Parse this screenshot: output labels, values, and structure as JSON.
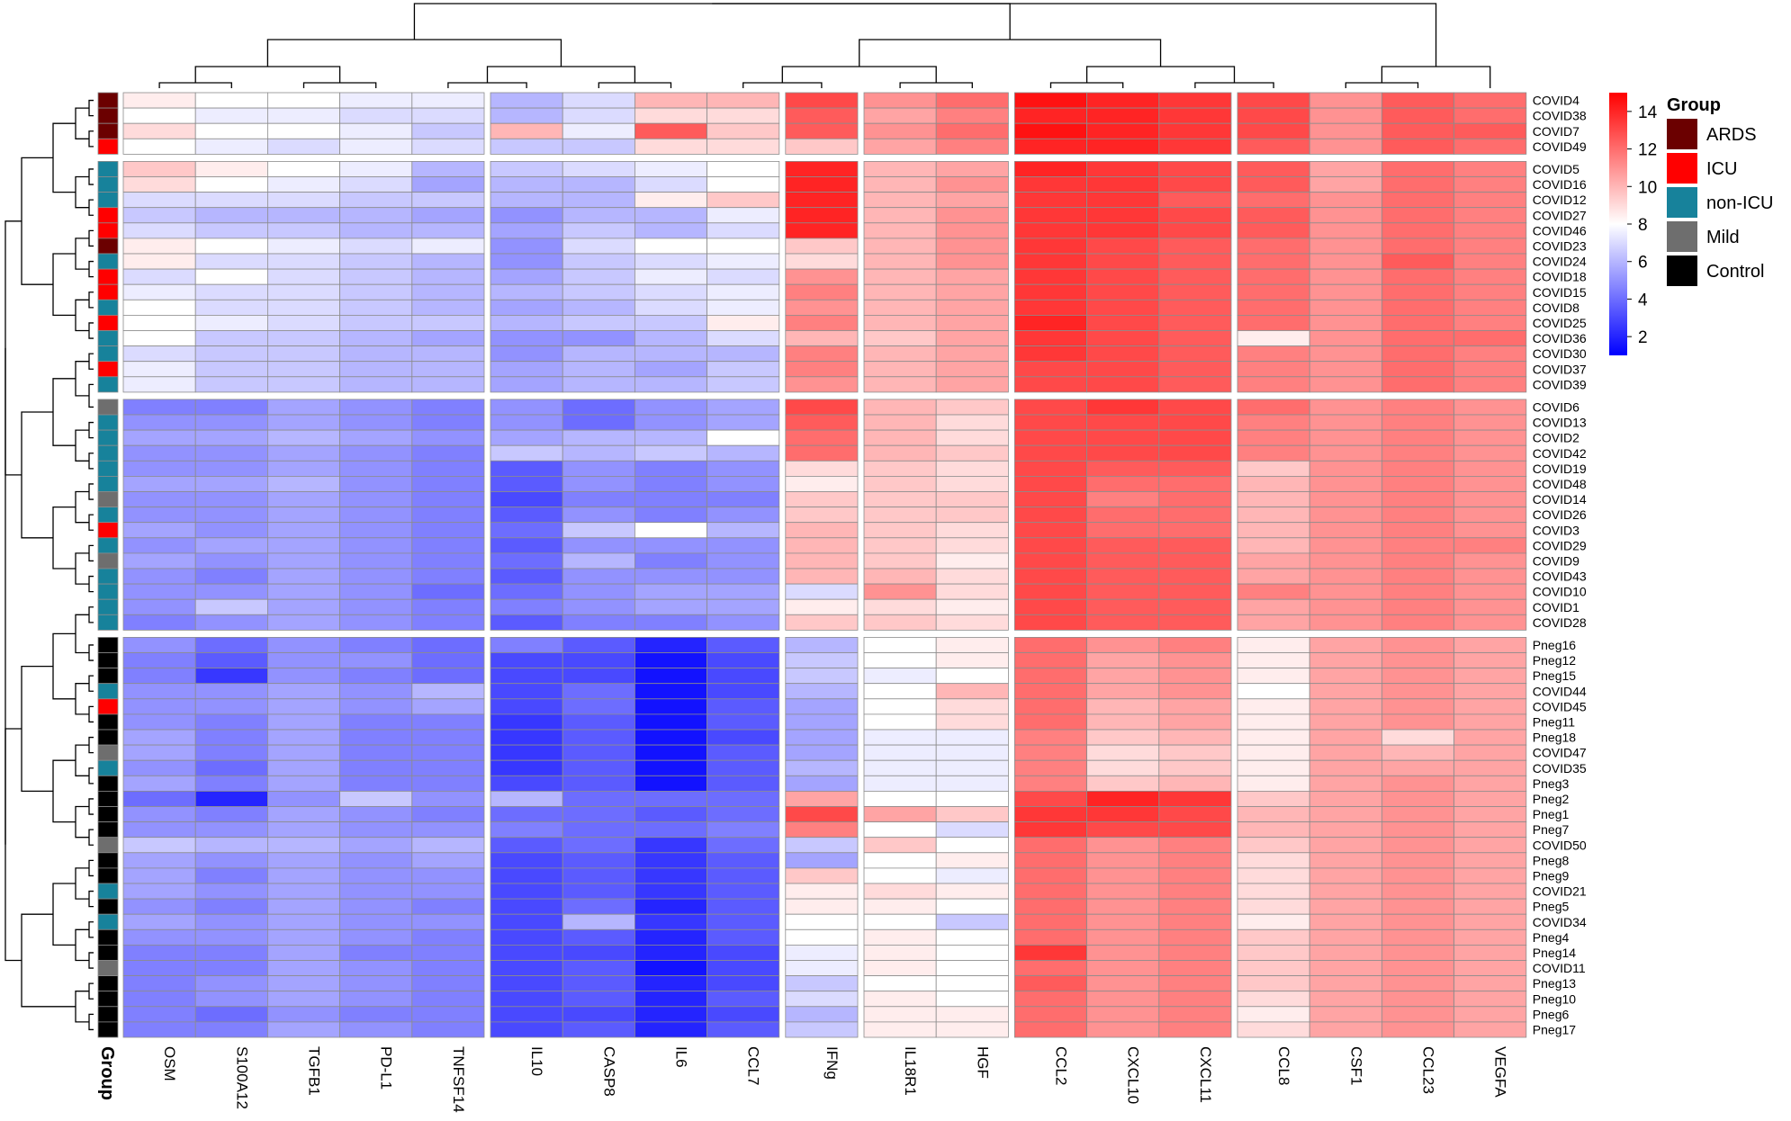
{
  "chart_data": {
    "type": "heatmap",
    "columns": [
      "OSM",
      "S100A12",
      "TGFB1",
      "PD-L1",
      "TNFSF14",
      "IL10",
      "CASP8",
      "IL6",
      "CCL7",
      "IFNg",
      "IL18R1",
      "HGF",
      "CCL2",
      "CXCL10",
      "CXCL11",
      "CCL8",
      "CSF1",
      "CCL23",
      "VEGFA"
    ],
    "rows": [
      "COVID4",
      "COVID38",
      "COVID7",
      "COVID49",
      "COVID5",
      "COVID16",
      "COVID12",
      "COVID27",
      "COVID46",
      "COVID23",
      "COVID24",
      "COVID18",
      "COVID15",
      "COVID8",
      "COVID25",
      "COVID36",
      "COVID30",
      "COVID37",
      "COVID39",
      "COVID6",
      "COVID13",
      "COVID2",
      "COVID42",
      "COVID19",
      "COVID48",
      "COVID14",
      "COVID26",
      "COVID3",
      "COVID29",
      "COVID9",
      "COVID43",
      "COVID10",
      "COVID1",
      "COVID28",
      "Pneg16",
      "Pneg12",
      "Pneg15",
      "COVID44",
      "COVID45",
      "Pneg11",
      "Pneg18",
      "COVID47",
      "COVID35",
      "Pneg3",
      "Pneg2",
      "Pneg1",
      "Pneg7",
      "COVID50",
      "Pneg8",
      "Pneg9",
      "COVID21",
      "Pneg5",
      "COVID34",
      "Pneg4",
      "Pneg14",
      "COVID11",
      "Pneg13",
      "Pneg10",
      "Pneg6",
      "Pneg17"
    ],
    "row_groups": [
      "ARDS",
      "ARDS",
      "ARDS",
      "ICU",
      "non-ICU",
      "non-ICU",
      "non-ICU",
      "ICU",
      "ICU",
      "ARDS",
      "non-ICU",
      "ICU",
      "ICU",
      "non-ICU",
      "ICU",
      "non-ICU",
      "non-ICU",
      "ICU",
      "non-ICU",
      "Mild",
      "non-ICU",
      "non-ICU",
      "non-ICU",
      "non-ICU",
      "non-ICU",
      "Mild",
      "non-ICU",
      "ICU",
      "non-ICU",
      "Mild",
      "non-ICU",
      "non-ICU",
      "non-ICU",
      "non-ICU",
      "Control",
      "Control",
      "Control",
      "non-ICU",
      "ICU",
      "Control",
      "Control",
      "Mild",
      "non-ICU",
      "Control",
      "Control",
      "Control",
      "Control",
      "Mild",
      "Control",
      "Control",
      "non-ICU",
      "Control",
      "non-ICU",
      "Control",
      "Control",
      "Mild",
      "Control",
      "Control",
      "Control",
      "Control"
    ],
    "row_splits": [
      4,
      19,
      34
    ],
    "col_splits": [
      5,
      9,
      10,
      12,
      15
    ],
    "values": [
      [
        8.5,
        8,
        8,
        7.5,
        7.5,
        6,
        7,
        10,
        10,
        13,
        11,
        12,
        14.5,
        14,
        13.5,
        13,
        11,
        12.5,
        12
      ],
      [
        8,
        7.5,
        7.5,
        7,
        7,
        6,
        7,
        9,
        9,
        12.5,
        10.5,
        11.5,
        14,
        14,
        13.5,
        13,
        11,
        12.5,
        12
      ],
      [
        9,
        8,
        8,
        7.5,
        6.5,
        10,
        7.5,
        12.5,
        9.5,
        12.5,
        11,
        12,
        14.5,
        14,
        13.5,
        13,
        11,
        12.5,
        12.5
      ],
      [
        8,
        7.5,
        7,
        7.5,
        7,
        6.5,
        6.5,
        9,
        9,
        9.5,
        10.5,
        11.5,
        14,
        14,
        13.5,
        12.5,
        11,
        12.5,
        12
      ],
      [
        9.5,
        8.5,
        8,
        7.5,
        6,
        6.5,
        7,
        7.5,
        8,
        14,
        10,
        10.5,
        14,
        13.5,
        13,
        12.5,
        10.5,
        12,
        11.5
      ],
      [
        9,
        8,
        7.5,
        7,
        5.5,
        6,
        6,
        7,
        8,
        14,
        10,
        11,
        13.5,
        13.5,
        13,
        12.5,
        10.5,
        12,
        11.5
      ],
      [
        7,
        7,
        7,
        6.5,
        6.5,
        6,
        6,
        8.5,
        9.5,
        14,
        10,
        10.5,
        13.5,
        13.5,
        12.5,
        12,
        11,
        12,
        11.5
      ],
      [
        6.5,
        6,
        6,
        6,
        5.5,
        5,
        6,
        6,
        7.5,
        14,
        10,
        11,
        13.5,
        13.5,
        13,
        12.5,
        11,
        12,
        11.5
      ],
      [
        7,
        6.5,
        6.5,
        6,
        6,
        5.5,
        6.5,
        6,
        7,
        14,
        10,
        11,
        13.5,
        13.5,
        13,
        12.5,
        11,
        12,
        11.5
      ],
      [
        8.5,
        8,
        7.5,
        7,
        7.5,
        5,
        7,
        8,
        8,
        9.5,
        10,
        11,
        13.5,
        13,
        12.5,
        12,
        11,
        12,
        11.5
      ],
      [
        8.5,
        7,
        7,
        6.5,
        6,
        5,
        6.5,
        7,
        7.5,
        9,
        10,
        11,
        13.5,
        13,
        12.5,
        12,
        11,
        12.5,
        11.5
      ],
      [
        7,
        8,
        7,
        6.5,
        6,
        5.5,
        6.5,
        7.5,
        7,
        11,
        10,
        10.5,
        13.5,
        13,
        12.5,
        12,
        11,
        12,
        11.5
      ],
      [
        7.5,
        7,
        7,
        6.5,
        6,
        6,
        6.5,
        7,
        7.5,
        11.5,
        10,
        10.5,
        13.5,
        13,
        12.5,
        12,
        11,
        12,
        11.5
      ],
      [
        8,
        7,
        7,
        6.5,
        6,
        5.5,
        6,
        7,
        7.5,
        11,
        10,
        10.5,
        13.5,
        13,
        12.5,
        12,
        11,
        12,
        11.5
      ],
      [
        8,
        7.5,
        7,
        6.5,
        6.5,
        6,
        6.5,
        6.5,
        8.5,
        11.5,
        10,
        10.5,
        14,
        13,
        12.5,
        12,
        11,
        12,
        11.5
      ],
      [
        8,
        6.5,
        6.5,
        6,
        5.5,
        5,
        5,
        6,
        7,
        10,
        9.5,
        10.5,
        13.5,
        13,
        12.5,
        8.5,
        11,
        12,
        12
      ],
      [
        7,
        6.5,
        6.5,
        6,
        6,
        5,
        6,
        6,
        6,
        11.5,
        10,
        10.5,
        13.5,
        13,
        12.5,
        11.5,
        11,
        12,
        11.5
      ],
      [
        7.5,
        6.5,
        6.5,
        6,
        6,
        5.5,
        6,
        5.5,
        6.5,
        11.5,
        10,
        10.5,
        13,
        13,
        12.5,
        11.5,
        11,
        12,
        11.5
      ],
      [
        7.5,
        6.5,
        6.5,
        6,
        6,
        5.5,
        6,
        6,
        6.5,
        11,
        10,
        10.5,
        13,
        13,
        12.5,
        11.5,
        11,
        12,
        11.5
      ],
      [
        4.5,
        4.5,
        5.5,
        5,
        4.5,
        5,
        4,
        5,
        5.5,
        13,
        10,
        9.5,
        13,
        13.5,
        13,
        12,
        11,
        11.5,
        11
      ],
      [
        5,
        5,
        5.5,
        5,
        4.5,
        5,
        4,
        5,
        5.5,
        12.5,
        10,
        9,
        13,
        13,
        13,
        11.5,
        11,
        11.5,
        11
      ],
      [
        5.5,
        5.5,
        6,
        5.5,
        5,
        5.5,
        6,
        6,
        8,
        12,
        10,
        9,
        13,
        13,
        13,
        11.5,
        11,
        11.5,
        11
      ],
      [
        5,
        5,
        5.5,
        5,
        4.5,
        6.5,
        6,
        6.5,
        6,
        12,
        10,
        9.5,
        13,
        13,
        13,
        11.5,
        11,
        11.5,
        11
      ],
      [
        5,
        5,
        5.5,
        5,
        4.5,
        3.5,
        5,
        4.5,
        5,
        9,
        9.5,
        9,
        13,
        12.5,
        12.5,
        9.5,
        11,
        11.5,
        11
      ],
      [
        5.5,
        5.5,
        6,
        5,
        4.5,
        3.5,
        5,
        4.5,
        5,
        8.5,
        9.5,
        9,
        13,
        12,
        12,
        10,
        11,
        11.5,
        11
      ],
      [
        5,
        5,
        5.5,
        5,
        4.5,
        3,
        4.5,
        4.5,
        4.5,
        9.5,
        9.5,
        9.5,
        13,
        11.5,
        12,
        10,
        11,
        11.5,
        11
      ],
      [
        5,
        5,
        5.5,
        5,
        4.5,
        3.5,
        5,
        4.5,
        5,
        9.5,
        9.5,
        9.5,
        13,
        12,
        12,
        10,
        11,
        11.5,
        11
      ],
      [
        5.5,
        5,
        5.5,
        5,
        4.5,
        4,
        6.5,
        8,
        6,
        10,
        9.5,
        9,
        13,
        12,
        12,
        10,
        11,
        11.5,
        11
      ],
      [
        5,
        5.5,
        5.5,
        5,
        4.5,
        3.5,
        5,
        5,
        5,
        10,
        9.5,
        9,
        13,
        12.5,
        12.5,
        10,
        11,
        11.5,
        11.5
      ],
      [
        5.5,
        5,
        5.5,
        5,
        4.5,
        4,
        6,
        4.5,
        5,
        10,
        9.5,
        8.5,
        13,
        12.5,
        12.5,
        10.5,
        11,
        11.5,
        11
      ],
      [
        5,
        4.5,
        5.5,
        5,
        4.5,
        3.5,
        5,
        5,
        5,
        10,
        10,
        9,
        13,
        12.5,
        12.5,
        10.5,
        11,
        11.5,
        11
      ],
      [
        5,
        5,
        5.5,
        5,
        4,
        4,
        5,
        5.5,
        5.5,
        7,
        11,
        9,
        13,
        12.5,
        12.5,
        11.5,
        11,
        11.5,
        11
      ],
      [
        5,
        6.5,
        5.5,
        5,
        4.5,
        4.5,
        5,
        5.5,
        5.5,
        8.5,
        9,
        8.5,
        13,
        12.5,
        12.5,
        10.5,
        11,
        11.5,
        11
      ],
      [
        4.5,
        5,
        5.5,
        5,
        4.5,
        3.5,
        4.5,
        4.5,
        5,
        9.5,
        9.5,
        9,
        13,
        12.5,
        12.5,
        10.5,
        11,
        11.5,
        11
      ],
      [
        5,
        4,
        5,
        4.5,
        4,
        4.5,
        3.5,
        2,
        3.5,
        6,
        8,
        8.5,
        12,
        11,
        11.5,
        8.5,
        10.5,
        11,
        10.5
      ],
      [
        4.5,
        3.5,
        5,
        5,
        4,
        3,
        3,
        1.5,
        3,
        6.5,
        8,
        8.5,
        12,
        10.5,
        11,
        8.5,
        10.5,
        11,
        10.5
      ],
      [
        4.5,
        2.5,
        5,
        4.5,
        4,
        3,
        3,
        1.5,
        3,
        6.5,
        7.5,
        8,
        12,
        10.5,
        11,
        8.5,
        10.5,
        11,
        10.5
      ],
      [
        5,
        5,
        5.5,
        5,
        6,
        3,
        4,
        1.5,
        3,
        6,
        8,
        10,
        12,
        10.5,
        11,
        8,
        10.5,
        11,
        10.5
      ],
      [
        5,
        5,
        5.5,
        5,
        5.5,
        3,
        4,
        1.5,
        3.5,
        5.5,
        8,
        9,
        12,
        10,
        10.5,
        8.5,
        10.5,
        11,
        10.5
      ],
      [
        5,
        4.5,
        5.5,
        4.5,
        4.5,
        2.5,
        3.5,
        1.5,
        3.5,
        5.5,
        8,
        9,
        12,
        10,
        10.5,
        8.5,
        10.5,
        11,
        10.5
      ],
      [
        5.5,
        4.5,
        5.5,
        4.5,
        4.5,
        2.5,
        3.5,
        1.5,
        3,
        5.5,
        7.5,
        7.5,
        11.5,
        9.5,
        10,
        8.5,
        10.5,
        9,
        10.5
      ],
      [
        5.5,
        4.5,
        5.5,
        4.5,
        4.5,
        2.5,
        3.5,
        1.5,
        3.5,
        5.5,
        7.5,
        7.5,
        11.5,
        9,
        9.5,
        8.5,
        10.5,
        10,
        10.5
      ],
      [
        5,
        4,
        5.5,
        4.5,
        4.5,
        2.5,
        3.5,
        1.5,
        3.5,
        6,
        7.5,
        7.5,
        11.5,
        9,
        9.5,
        8.5,
        10.5,
        10.5,
        10.5
      ],
      [
        5.5,
        4.5,
        5.5,
        4.5,
        4.5,
        3,
        3.5,
        1.5,
        3.5,
        5.5,
        7.5,
        7.5,
        11.5,
        9.5,
        10,
        8.5,
        10.5,
        11,
        10.5
      ],
      [
        4,
        2,
        5,
        6.5,
        5,
        6,
        4,
        4,
        4,
        10.5,
        8,
        8,
        13,
        14,
        13.5,
        9.5,
        10.5,
        11,
        10.5
      ],
      [
        5,
        4.5,
        5.5,
        5,
        4.5,
        4,
        4,
        3.5,
        4,
        13,
        10.5,
        9.5,
        13.5,
        13.5,
        13,
        10,
        10.5,
        11,
        10.5
      ],
      [
        5,
        5,
        5.5,
        5,
        5,
        4.5,
        4,
        4,
        4.5,
        11.5,
        8,
        7,
        13.5,
        13,
        13,
        10,
        10.5,
        11,
        10.5
      ],
      [
        6.5,
        6,
        6,
        5.5,
        6,
        3.5,
        4,
        2.5,
        4,
        6.5,
        9.5,
        8,
        12,
        11,
        11.5,
        9.5,
        10.5,
        11,
        10.5
      ],
      [
        5.5,
        5,
        5.5,
        5,
        5.5,
        3,
        3.5,
        2.5,
        3.5,
        5.5,
        8,
        8.5,
        12,
        11,
        11.5,
        9,
        10.5,
        11,
        10.5
      ],
      [
        5.5,
        4.5,
        5.5,
        5,
        5,
        3,
        3.5,
        2.5,
        3.5,
        9.5,
        8,
        7.5,
        12,
        11,
        11.5,
        9,
        10.5,
        11,
        10.5
      ],
      [
        5.5,
        5,
        5.5,
        5,
        5,
        3,
        3.5,
        2.5,
        3.5,
        8.5,
        9,
        8.5,
        12,
        11,
        11.5,
        9,
        10.5,
        11,
        10.5
      ],
      [
        5,
        4.5,
        5.5,
        5,
        4.5,
        3,
        4,
        2,
        3.5,
        8.5,
        8.5,
        8,
        12,
        11,
        11.5,
        9,
        10.5,
        11,
        10.5
      ],
      [
        5.5,
        5,
        5.5,
        5,
        5,
        3,
        6,
        2.5,
        3.5,
        8,
        8,
        6.5,
        12,
        11,
        11.5,
        8.5,
        10.5,
        11,
        10.5
      ],
      [
        5,
        5,
        5.5,
        5,
        4.5,
        3,
        3.5,
        2,
        3.5,
        8,
        8.5,
        8,
        12,
        11,
        11.5,
        9.5,
        10.5,
        11,
        10.5
      ],
      [
        4.5,
        4.5,
        5.5,
        4.5,
        4.5,
        3,
        3,
        2,
        3,
        7.5,
        8.5,
        8,
        13.5,
        11,
        11.5,
        9.5,
        10.5,
        11,
        10.5
      ],
      [
        4.5,
        4.5,
        5.5,
        5,
        4.5,
        3,
        3.5,
        1.5,
        3,
        7.5,
        8.5,
        8,
        12,
        11,
        11.5,
        9.5,
        10.5,
        11,
        10.5
      ],
      [
        4.5,
        5,
        5.5,
        5,
        4.5,
        3,
        3.5,
        2,
        3,
        6.5,
        8,
        8,
        12.5,
        11,
        11.5,
        9.5,
        10.5,
        11,
        10.5
      ],
      [
        4.5,
        5,
        5.5,
        5,
        4.5,
        3,
        3.5,
        2,
        3.5,
        7,
        8.5,
        8,
        12,
        11,
        11.5,
        9,
        10.5,
        11,
        10.5
      ],
      [
        4.5,
        4,
        5,
        4.5,
        4.5,
        3,
        3,
        2,
        3,
        6,
        8.5,
        8.5,
        12,
        11,
        11.5,
        8.5,
        10.5,
        11,
        10.5
      ],
      [
        4.5,
        4.5,
        5.5,
        5,
        4.5,
        3,
        3.5,
        2,
        3.5,
        6.5,
        8.5,
        8.5,
        12,
        11,
        11.5,
        9,
        10.5,
        11,
        10.5
      ]
    ],
    "color_scale": {
      "min": 1,
      "mid": 8,
      "max": 15,
      "low_color": "#0000ff",
      "mid_color": "#ffffff",
      "high_color": "#ff0000",
      "ticks": [
        "2",
        "4",
        "6",
        "8",
        "10",
        "12",
        "14"
      ]
    },
    "legend": {
      "title": "Group",
      "items": [
        {
          "label": "ARDS",
          "color": "#6b0000"
        },
        {
          "label": "ICU",
          "color": "#ff0000"
        },
        {
          "label": "non-ICU",
          "color": "#17829b"
        },
        {
          "label": "Mild",
          "color": "#6e6e6e"
        },
        {
          "label": "Control",
          "color": "#000000"
        }
      ]
    },
    "annotation_label": "Group"
  }
}
